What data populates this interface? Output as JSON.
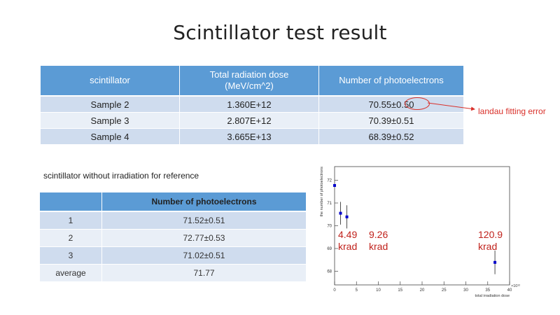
{
  "slide": {
    "title": "Scintillator test result"
  },
  "main_table": {
    "headers": [
      "scintillator",
      "Total radiation dose\n(MeV/cm^2)",
      "Number of photoelectrons"
    ],
    "header_dose_line1": "Total radiation dose",
    "header_dose_line2": "(MeV/cm^2)",
    "rows": [
      [
        "Sample 2",
        "1.360E+12",
        "70.55±0.50"
      ],
      [
        "Sample 3",
        "2.807E+12",
        "70.39±0.51"
      ],
      [
        "Sample 4",
        "3.665E+13",
        "68.39±0.52"
      ]
    ]
  },
  "annotation": {
    "text": "landau fitting error",
    "color": "#d9302a"
  },
  "reference": {
    "caption": "scintillator without irradiation for reference",
    "header": "Number of photoelectrons",
    "rows": [
      [
        "1",
        "71.52±0.51"
      ],
      [
        "2",
        "72.77±0.53"
      ],
      [
        "3",
        "71.02±0.51"
      ],
      [
        "average",
        "71.77"
      ]
    ]
  },
  "chart_data": {
    "type": "scatter",
    "xlabel": "total irradiation dose",
    "ylabel": "the number of photoelectrons",
    "x_exponent_label": "×10¹²",
    "xlim": [
      0,
      40
    ],
    "ylim": [
      67.4,
      72.6
    ],
    "xticks": [
      0,
      5,
      10,
      15,
      20,
      25,
      30,
      35,
      40
    ],
    "yticks": [
      68,
      69,
      70,
      71,
      72
    ],
    "points": [
      {
        "x": 0,
        "y": 71.77,
        "yerr": 0
      },
      {
        "x": 1.36,
        "y": 70.55,
        "yerr": 0.5
      },
      {
        "x": 2.807,
        "y": 70.39,
        "yerr": 0.51
      },
      {
        "x": 36.65,
        "y": 68.39,
        "yerr": 0.52
      }
    ],
    "point_color": "#0000cc",
    "annotations": [
      {
        "line1": "4.49",
        "line2": "krad"
      },
      {
        "line1": "9.26",
        "line2": "krad"
      },
      {
        "line1": "120.9",
        "line2": "krad"
      }
    ],
    "annotation_color": "#c0221c"
  }
}
